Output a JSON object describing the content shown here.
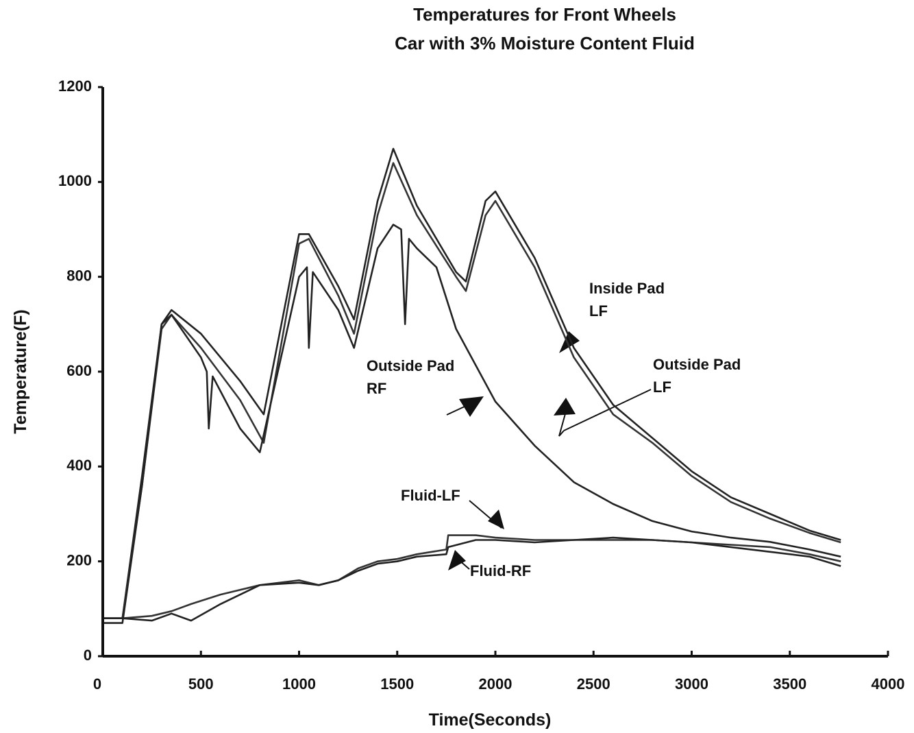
{
  "chart_data": {
    "type": "line",
    "title": [
      "Temperatures for Front Wheels",
      "Car  with 3% Moisture Content Fluid"
    ],
    "xlabel": "Time(Seconds)",
    "ylabel": "Temperature(F)",
    "xlim": [
      0,
      4000
    ],
    "ylim": [
      0,
      1200
    ],
    "xticks": [
      0,
      500,
      1000,
      1500,
      2000,
      2500,
      3000,
      3500,
      4000
    ],
    "yticks": [
      0,
      200,
      400,
      600,
      800,
      1000,
      1200
    ],
    "grid": false,
    "series": [
      {
        "color": "#222222",
        "x": [
          0,
          100,
          200,
          300,
          350,
          500,
          700,
          820,
          1000,
          1050,
          1200,
          1280,
          1400,
          1480,
          1600,
          1800,
          1850,
          1950,
          2000,
          2200,
          2400,
          2600,
          2800,
          3000,
          3200,
          3400,
          3600,
          3760
        ],
        "values": [
          80,
          80,
          380,
          700,
          730,
          680,
          580,
          510,
          890,
          890,
          780,
          710,
          960,
          1070,
          950,
          810,
          790,
          960,
          980,
          840,
          650,
          530,
          460,
          390,
          335,
          300,
          265,
          245
        ]
      },
      {
        "color": "#333333",
        "x": [
          0,
          100,
          200,
          300,
          350,
          500,
          700,
          820,
          1000,
          1050,
          1200,
          1280,
          1400,
          1480,
          1600,
          1800,
          1850,
          1950,
          2000,
          2200,
          2400,
          2600,
          2800,
          3000,
          3200,
          3400,
          3600,
          3760
        ],
        "values": [
          80,
          80,
          360,
          690,
          720,
          650,
          540,
          450,
          870,
          880,
          760,
          680,
          930,
          1040,
          930,
          800,
          770,
          930,
          960,
          820,
          630,
          510,
          450,
          380,
          325,
          290,
          260,
          240
        ]
      },
      {
        "color": "#222222",
        "x": [
          0,
          100,
          200,
          300,
          350,
          500,
          530,
          540,
          560,
          700,
          800,
          1000,
          1040,
          1050,
          1070,
          1200,
          1280,
          1400,
          1480,
          1520,
          1540,
          1560,
          1600,
          1700,
          1800,
          2000,
          2200,
          2400,
          2600,
          2800,
          3000,
          3200,
          3400,
          3600,
          3760
        ],
        "values": [
          70,
          70,
          360,
          700,
          720,
          630,
          600,
          480,
          590,
          480,
          430,
          800,
          820,
          650,
          810,
          730,
          650,
          860,
          910,
          900,
          700,
          880,
          860,
          820,
          690,
          537,
          444,
          367,
          321,
          285,
          263,
          250,
          241,
          225,
          210
        ]
      },
      {
        "color": "#333333",
        "x": [
          0,
          100,
          250,
          350,
          450,
          600,
          800,
          1000,
          1100,
          1200,
          1300,
          1400,
          1500,
          1600,
          1750,
          1760,
          1900,
          2000,
          2200,
          2400,
          2600,
          2800,
          3000,
          3200,
          3400,
          3600,
          3760
        ],
        "values": [
          80,
          80,
          85,
          95,
          110,
          130,
          150,
          160,
          150,
          160,
          185,
          200,
          205,
          215,
          225,
          255,
          255,
          250,
          245,
          245,
          245,
          245,
          240,
          235,
          230,
          215,
          200
        ]
      },
      {
        "color": "#222222",
        "x": [
          0,
          100,
          250,
          350,
          450,
          600,
          800,
          1000,
          1100,
          1200,
          1300,
          1400,
          1500,
          1600,
          1750,
          1760,
          1900,
          2000,
          2200,
          2400,
          2600,
          2800,
          3000,
          3200,
          3400,
          3600,
          3760
        ],
        "values": [
          80,
          80,
          75,
          90,
          75,
          110,
          150,
          155,
          150,
          160,
          180,
          195,
          200,
          210,
          215,
          230,
          245,
          245,
          240,
          245,
          250,
          245,
          240,
          230,
          220,
          210,
          190
        ]
      }
    ],
    "annotations": [
      {
        "lines": [
          "Inside Pad",
          "LF"
        ]
      },
      {
        "lines": [
          "Outside Pad",
          "LF"
        ]
      },
      {
        "lines": [
          "Outside Pad",
          "RF"
        ]
      },
      {
        "lines": [
          "Fluid-LF"
        ]
      },
      {
        "lines": [
          "Fluid-RF"
        ]
      }
    ]
  }
}
